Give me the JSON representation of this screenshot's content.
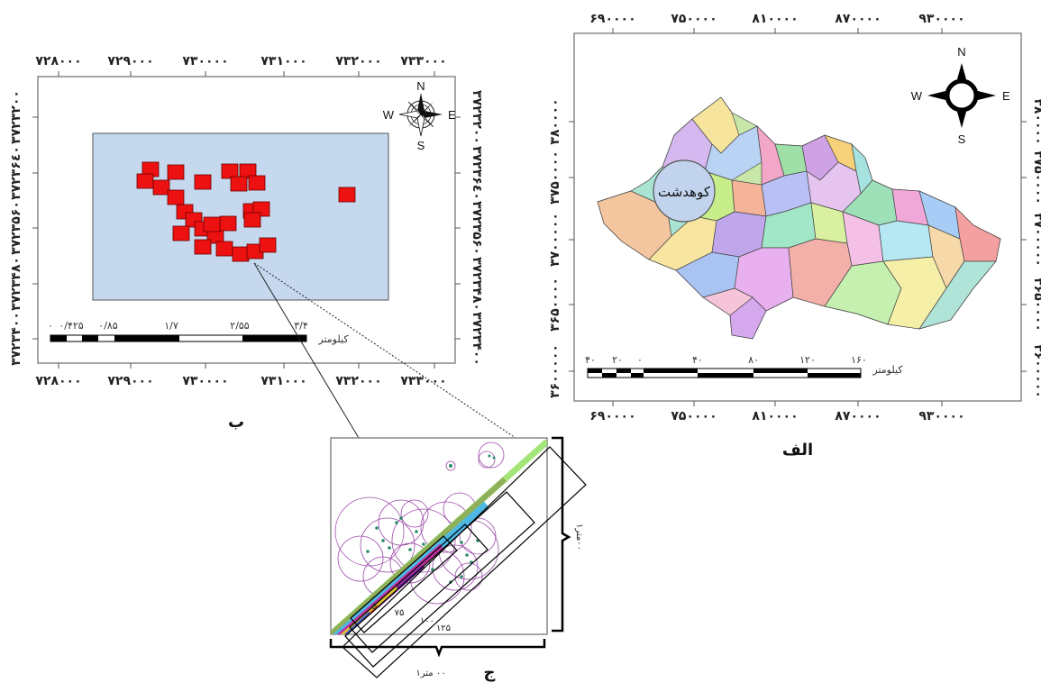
{
  "panel_b": {
    "label": "ب",
    "x_ticks": [
      "۷۲۸٠٠٠",
      "۷۲۹٠٠٠",
      "۷۳٠٠٠٠",
      "۷۳۱٠٠٠",
      "۷۳۲٠٠٠",
      "۷۳۳٠٠٠"
    ],
    "y_ticks": [
      "۳۷۲۳۲٠٠",
      "۳۷۲۳۶٤٠",
      "۳۷۲۳۵۶٠",
      "۳۷۲۳۴۸٠",
      "۳۷۲۳۴٠٠"
    ],
    "scale_ticks": [
      "٠",
      "٠/۴۲۵",
      "٠/۸۵",
      "۱/۷",
      "۲/۵۵",
      "۳/۴"
    ],
    "scale_unit": "کیلومتر",
    "compass": {
      "n": "N",
      "s": "S",
      "e": "E",
      "w": "W"
    },
    "colors": {
      "area": "#c6d8ee",
      "plots": "#ee1111"
    }
  },
  "panel_a": {
    "label": "الف",
    "x_ticks": [
      "۶۹٠٠٠٠",
      "۷۵٠٠٠٠",
      "۸۱٠٠٠٠",
      "۸۷٠٠٠٠",
      "۹۳٠٠٠٠"
    ],
    "y_ticks": [
      "۳۸٠٠٠٠",
      "۳۷۵٠٠٠٠",
      "۳۷٠٠٠٠٠",
      "۳۶۵٠٠٠٠",
      "۳۶٠٠٠٠٠"
    ],
    "scale_ticks": [
      "۴٠",
      "۲٠",
      "٠",
      "۴٠",
      "۸٠",
      "۱۲٠",
      "۱۶٠"
    ],
    "scale_unit": "کیلومتر",
    "callout": "کوهدشت",
    "compass": {
      "n": "N",
      "s": "S",
      "e": "E",
      "w": "W"
    }
  },
  "panel_c": {
    "label": "ج",
    "strip_labels": [
      "۵٠",
      "۷۵",
      "۱٠٠",
      "۱۲۵"
    ],
    "width_label": "۱٠٠ متر",
    "height_label": "۱٠٠متر"
  }
}
